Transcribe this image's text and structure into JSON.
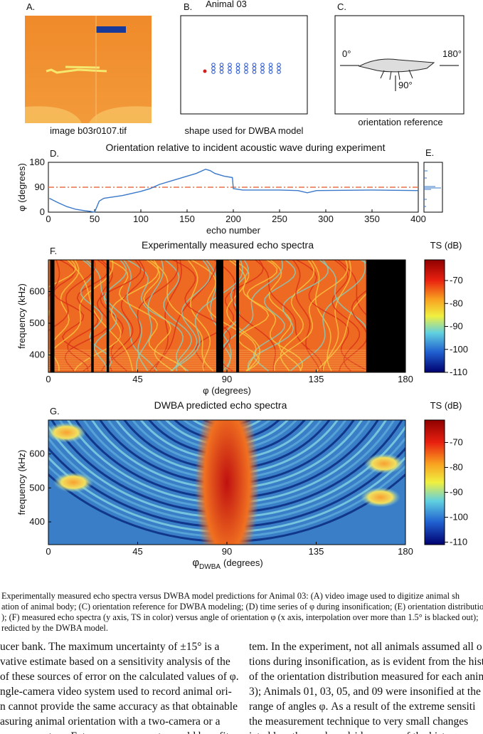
{
  "figure": {
    "panel_a": {
      "label": "A.",
      "caption": "image b03r0107.tif"
    },
    "panel_b": {
      "label": "B.",
      "title": "Animal 03",
      "caption": "shape used for DWBA model"
    },
    "panel_c": {
      "label": "C.",
      "angles": [
        "0°",
        "180°",
        "90°"
      ],
      "caption": "orientation reference"
    },
    "panel_e": {
      "label": "E."
    }
  },
  "chart_data": [
    {
      "type": "line",
      "label": "D.",
      "title": "Orientation relative to incident acoustic wave during experiment",
      "x": [
        1,
        10,
        20,
        30,
        40,
        45,
        50,
        55,
        60,
        80,
        100,
        110,
        120,
        140,
        160,
        170,
        175,
        180,
        190,
        199,
        200,
        210,
        250,
        270,
        280,
        290,
        350,
        400
      ],
      "series": [
        {
          "color": "#3a78c9",
          "values": [
            50,
            35,
            20,
            10,
            5,
            3,
            0,
            40,
            50,
            60,
            75,
            85,
            100,
            120,
            140,
            155,
            150,
            140,
            130,
            125,
            85,
            80,
            80,
            78,
            70,
            78,
            80,
            78
          ]
        }
      ],
      "reference_value": 90,
      "reference_color": "#e8704a",
      "xlim": [
        0,
        400
      ],
      "xticks": [
        0,
        50,
        100,
        150,
        200,
        250,
        300,
        350,
        400
      ],
      "ylim": [
        0,
        180
      ],
      "yticks": [
        0,
        90,
        180
      ],
      "y_label": "φ (degrees)",
      "x_label": "echo number"
    },
    {
      "type": "heatmap",
      "label": "F.",
      "title": "Experimentally measured echo spectra",
      "colorbar_label": "TS (dB)",
      "xlim": [
        0,
        180
      ],
      "xticks": [
        0,
        45,
        90,
        135,
        180
      ],
      "ylim": [
        345,
        700
      ],
      "yticks": [
        400,
        500,
        600
      ],
      "clim": [
        -110,
        -61
      ],
      "cticks": [
        -70,
        -80,
        -90,
        -100,
        -110
      ],
      "y_label": "frequency (kHz)",
      "x_label": "φ (degrees)"
    },
    {
      "type": "heatmap",
      "label": "G.",
      "title": "DWBA predicted echo spectra",
      "colorbar_label": "TS (dB)",
      "xlim": [
        0,
        180
      ],
      "xticks": [
        0,
        45,
        90,
        135,
        180
      ],
      "ylim": [
        333,
        700
      ],
      "yticks": [
        400,
        500,
        600
      ],
      "clim": [
        -111,
        -61
      ],
      "cticks": [
        -70,
        -80,
        -90,
        -100,
        -110
      ],
      "y_label": "frequency (kHz)",
      "x_label": "φ",
      "x_label_sub": "DWBA",
      "x_label_unit": "(degrees)"
    }
  ],
  "caption": [
    "Experimentally measured echo spectra versus DWBA model predictions for Animal 03: (A) video image used to digitize animal sh",
    "ation of animal body; (C) orientation reference for DWBA modeling; (D) time series of φ during insonification; (E) orientation distribution h",
    "); (F) measured echo spectra (y axis, TS in color) versus angle of orientation φ (x axis, interpolation over more than 1.5° is blacked out);",
    "redicted by the DWBA model."
  ],
  "body": {
    "left": [
      "ucer bank. The maximum uncertainty of ±15° is a",
      "vative estimate based on a sensitivity analysis of the",
      "of these sources of error on the calculated values of φ.",
      "ngle-camera video system used to record animal ori-",
      "n cannot provide the same accuracy as that obtainable",
      "asuring animal orientation with a two-camera or a",
      "camera system. Future measurements would benefit"
    ],
    "right": [
      "tem. In the experiment, not all animals assumed all o",
      "tions during insonification, as is evident from the histo",
      "of the orientation distribution measured for each anim",
      "3); Animals 01, 03, 05, and 09 were insonified at the",
      "range of angles φ. As a result of the extreme sensiti",
      "the measurement technique to very small changes",
      "iated length near broadside, many of the histograms"
    ]
  }
}
